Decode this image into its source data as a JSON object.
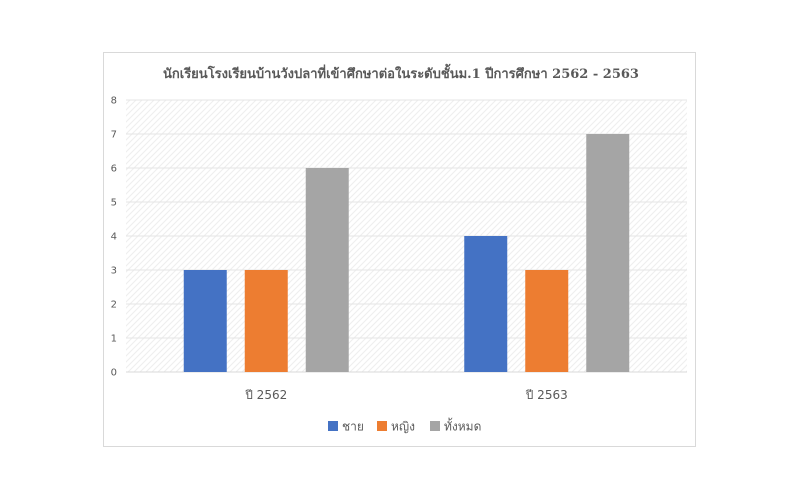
{
  "chart_data": {
    "type": "bar",
    "title": "นักเรียนโรงเรียนบ้านวังปลาที่เข้าศึกษาต่อในระดับชั้นม.1 ปีการศึกษา 2562 - 2563",
    "categories": [
      "ปี 2562",
      "ปี 2563"
    ],
    "series": [
      {
        "name": "ชาย",
        "values": [
          3,
          4
        ],
        "color": "#4472C4"
      },
      {
        "name": "หญิง",
        "values": [
          3,
          3
        ],
        "color": "#ED7D31"
      },
      {
        "name": "ทั้งหมด",
        "values": [
          6,
          7
        ],
        "color": "#A5A5A5"
      }
    ],
    "ylim": [
      0,
      8
    ],
    "yticks": [
      0,
      1,
      2,
      3,
      4,
      5,
      6,
      7,
      8
    ],
    "xlabel": "",
    "ylabel": "",
    "grid": true,
    "legend": "bottom"
  }
}
